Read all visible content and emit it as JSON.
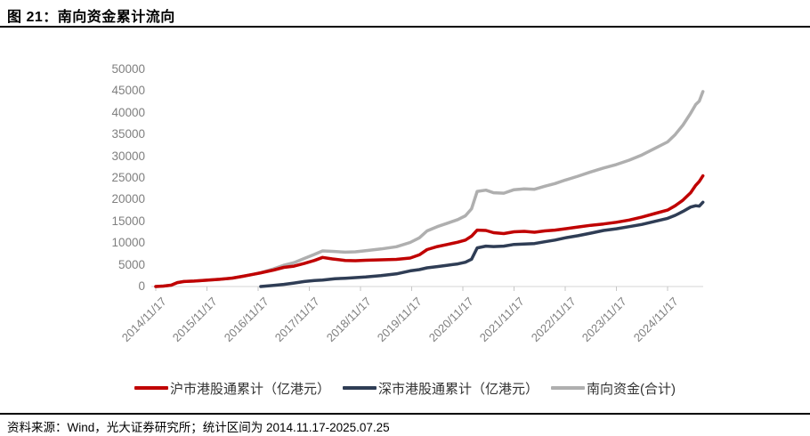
{
  "header": {
    "title": "图 21：南向资金累计流向"
  },
  "footer": {
    "source": "资料来源：Wind，光大证券研究所；统计区间为 2014.11.17-2025.07.25"
  },
  "colors": {
    "sh_red": "#C00000",
    "sz_navy": "#2F3D55",
    "total_gray": "#AFAFAF",
    "axis_line": "#D6D6D6",
    "tick_mark": "#C6C6C6",
    "tick_text": "#7f7f7f",
    "rule_black": "#000000"
  },
  "chart_data": {
    "type": "line",
    "title": "南向资金累计流向",
    "xlabel": "",
    "ylabel": "",
    "x_unit": "years since 2014/11/17",
    "xlim": [
      0,
      10.69
    ],
    "ylim": [
      0,
      50000
    ],
    "y_ticks": [
      0,
      5000,
      10000,
      15000,
      20000,
      25000,
      30000,
      35000,
      40000,
      45000,
      50000
    ],
    "x_tick_labels": [
      "2014/11/17",
      "2015/11/17",
      "2016/11/17",
      "2017/11/17",
      "2018/11/17",
      "2019/11/17",
      "2020/11/17",
      "2021/11/17",
      "2022/11/17",
      "2023/11/17",
      "2024/11/17"
    ],
    "x_tick_positions": [
      0,
      1,
      2,
      3,
      4,
      5,
      6,
      7,
      8,
      9,
      10
    ],
    "grid": false,
    "legend_position": "bottom",
    "draw_order": [
      2,
      1,
      0
    ],
    "series": [
      {
        "name": "沪市港股通累计（亿港元）",
        "color": "#C00000",
        "points": [
          [
            0,
            0
          ],
          [
            0.15,
            100
          ],
          [
            0.3,
            300
          ],
          [
            0.42,
            900
          ],
          [
            0.55,
            1150
          ],
          [
            0.75,
            1250
          ],
          [
            1.0,
            1450
          ],
          [
            1.25,
            1650
          ],
          [
            1.5,
            1950
          ],
          [
            1.7,
            2350
          ],
          [
            1.9,
            2800
          ],
          [
            2.05,
            3150
          ],
          [
            2.3,
            3800
          ],
          [
            2.5,
            4400
          ],
          [
            2.7,
            4700
          ],
          [
            2.9,
            5300
          ],
          [
            3.1,
            6000
          ],
          [
            3.26,
            6700
          ],
          [
            3.45,
            6350
          ],
          [
            3.7,
            6000
          ],
          [
            3.9,
            5950
          ],
          [
            4.1,
            6050
          ],
          [
            4.4,
            6150
          ],
          [
            4.7,
            6250
          ],
          [
            4.97,
            6550
          ],
          [
            5.15,
            7300
          ],
          [
            5.3,
            8500
          ],
          [
            5.5,
            9200
          ],
          [
            5.7,
            9700
          ],
          [
            5.9,
            10200
          ],
          [
            6.05,
            10700
          ],
          [
            6.17,
            11600
          ],
          [
            6.28,
            13000
          ],
          [
            6.45,
            12900
          ],
          [
            6.6,
            12400
          ],
          [
            6.8,
            12200
          ],
          [
            7.0,
            12600
          ],
          [
            7.2,
            12700
          ],
          [
            7.4,
            12500
          ],
          [
            7.6,
            12800
          ],
          [
            7.8,
            13000
          ],
          [
            8.0,
            13300
          ],
          [
            8.25,
            13700
          ],
          [
            8.5,
            14100
          ],
          [
            8.75,
            14400
          ],
          [
            9.0,
            14800
          ],
          [
            9.25,
            15300
          ],
          [
            9.5,
            16000
          ],
          [
            9.75,
            16800
          ],
          [
            10.0,
            17600
          ],
          [
            10.15,
            18600
          ],
          [
            10.3,
            19900
          ],
          [
            10.45,
            21600
          ],
          [
            10.55,
            23300
          ],
          [
            10.62,
            24200
          ],
          [
            10.69,
            25500
          ]
        ]
      },
      {
        "name": "深市港股通累计（亿港元）",
        "color": "#2F3D55",
        "points": [
          [
            2.05,
            0
          ],
          [
            2.3,
            250
          ],
          [
            2.5,
            500
          ],
          [
            2.7,
            800
          ],
          [
            2.9,
            1150
          ],
          [
            3.1,
            1400
          ],
          [
            3.26,
            1500
          ],
          [
            3.5,
            1800
          ],
          [
            3.7,
            1900
          ],
          [
            3.9,
            2050
          ],
          [
            4.1,
            2200
          ],
          [
            4.4,
            2500
          ],
          [
            4.7,
            2900
          ],
          [
            4.97,
            3600
          ],
          [
            5.15,
            3900
          ],
          [
            5.3,
            4300
          ],
          [
            5.5,
            4600
          ],
          [
            5.7,
            4900
          ],
          [
            5.9,
            5200
          ],
          [
            6.05,
            5600
          ],
          [
            6.17,
            6300
          ],
          [
            6.28,
            8900
          ],
          [
            6.45,
            9300
          ],
          [
            6.6,
            9200
          ],
          [
            6.8,
            9300
          ],
          [
            7.0,
            9700
          ],
          [
            7.2,
            9800
          ],
          [
            7.4,
            9900
          ],
          [
            7.6,
            10300
          ],
          [
            7.8,
            10700
          ],
          [
            8.0,
            11200
          ],
          [
            8.25,
            11700
          ],
          [
            8.5,
            12300
          ],
          [
            8.75,
            12900
          ],
          [
            9.0,
            13300
          ],
          [
            9.25,
            13800
          ],
          [
            9.5,
            14300
          ],
          [
            9.75,
            15000
          ],
          [
            10.0,
            15700
          ],
          [
            10.15,
            16400
          ],
          [
            10.3,
            17300
          ],
          [
            10.45,
            18300
          ],
          [
            10.55,
            18600
          ],
          [
            10.62,
            18500
          ],
          [
            10.69,
            19400
          ]
        ]
      },
      {
        "name": "南向资金(合计)",
        "color": "#AFAFAF",
        "points": [
          [
            0,
            0
          ],
          [
            0.15,
            100
          ],
          [
            0.3,
            300
          ],
          [
            0.42,
            900
          ],
          [
            0.55,
            1150
          ],
          [
            0.75,
            1250
          ],
          [
            1.0,
            1450
          ],
          [
            1.25,
            1650
          ],
          [
            1.5,
            1950
          ],
          [
            1.7,
            2350
          ],
          [
            1.9,
            2800
          ],
          [
            2.05,
            3150
          ],
          [
            2.3,
            4050
          ],
          [
            2.5,
            4900
          ],
          [
            2.7,
            5500
          ],
          [
            2.9,
            6450
          ],
          [
            3.1,
            7400
          ],
          [
            3.26,
            8200
          ],
          [
            3.45,
            8100
          ],
          [
            3.7,
            7900
          ],
          [
            3.9,
            8000
          ],
          [
            4.1,
            8250
          ],
          [
            4.4,
            8650
          ],
          [
            4.7,
            9150
          ],
          [
            4.97,
            10150
          ],
          [
            5.15,
            11200
          ],
          [
            5.3,
            12800
          ],
          [
            5.5,
            13800
          ],
          [
            5.7,
            14600
          ],
          [
            5.9,
            15400
          ],
          [
            6.05,
            16300
          ],
          [
            6.17,
            17900
          ],
          [
            6.28,
            21900
          ],
          [
            6.45,
            22200
          ],
          [
            6.6,
            21600
          ],
          [
            6.8,
            21500
          ],
          [
            7.0,
            22300
          ],
          [
            7.2,
            22500
          ],
          [
            7.4,
            22400
          ],
          [
            7.6,
            23100
          ],
          [
            7.8,
            23700
          ],
          [
            8.0,
            24500
          ],
          [
            8.25,
            25400
          ],
          [
            8.5,
            26400
          ],
          [
            8.75,
            27300
          ],
          [
            9.0,
            28100
          ],
          [
            9.25,
            29100
          ],
          [
            9.5,
            30300
          ],
          [
            9.75,
            31800
          ],
          [
            10.0,
            33300
          ],
          [
            10.15,
            35000
          ],
          [
            10.3,
            37200
          ],
          [
            10.45,
            39900
          ],
          [
            10.55,
            41900
          ],
          [
            10.62,
            42700
          ],
          [
            10.69,
            44900
          ]
        ]
      }
    ]
  }
}
